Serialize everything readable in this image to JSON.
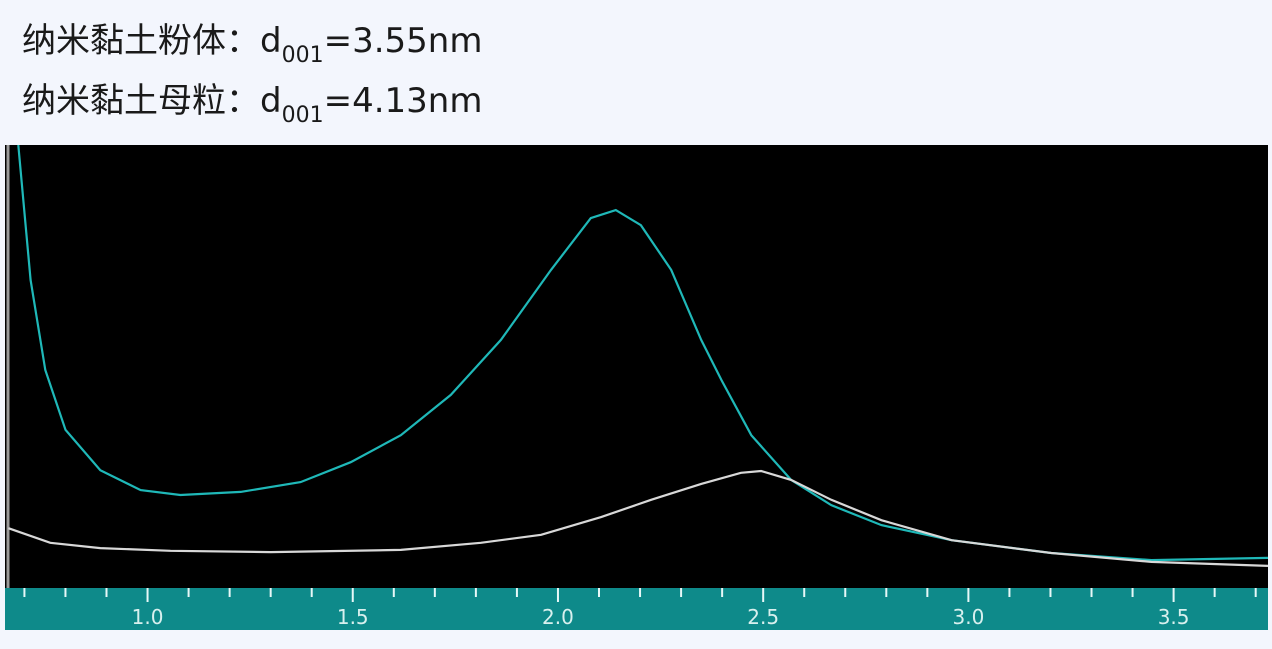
{
  "chart_data": {
    "type": "line",
    "annotations": [
      {
        "prefix": "纳米黏土粉体：d",
        "subscript": "001",
        "suffix": "=3.55nm"
      },
      {
        "prefix": "纳米黏土母粒：d",
        "subscript": "001",
        "suffix": "=4.13nm"
      }
    ],
    "xlim": [
      0.66,
      3.73
    ],
    "ylim": [
      0,
      100
    ],
    "xticks": [
      {
        "value": 1,
        "label": "1.0"
      },
      {
        "value": 1.5,
        "label": "1.5"
      },
      {
        "value": 2,
        "label": "2.0"
      },
      {
        "value": 2.5,
        "label": "2.5"
      },
      {
        "value": 3,
        "label": "3.0"
      },
      {
        "value": 3.5,
        "label": "3.5"
      }
    ],
    "minor_xticks": [
      0.7,
      0.8,
      0.9,
      1.1,
      1.2,
      1.3,
      1.4,
      1.6,
      1.7,
      1.8,
      1.9,
      2.1,
      2.2,
      2.3,
      2.4,
      2.6,
      2.7,
      2.8,
      2.9,
      3.1,
      3.2,
      3.3,
      3.4,
      3.6,
      3.7
    ],
    "series": [
      {
        "color": "#1fb8b8",
        "x": [
          0.685,
          0.715,
          0.751,
          0.8,
          0.885,
          0.983,
          1.08,
          1.227,
          1.373,
          1.495,
          1.617,
          1.739,
          1.861,
          1.983,
          2.08,
          2.141,
          2.202,
          2.276,
          2.349,
          2.398,
          2.471,
          2.568,
          2.666,
          2.788,
          2.959,
          3.202,
          3.446,
          3.73
        ],
        "values": [
          100,
          69.5,
          49.2,
          35.7,
          26.6,
          22.1,
          21.0,
          21.7,
          23.9,
          28.4,
          34.5,
          43.6,
          56.0,
          71.8,
          83.5,
          85.3,
          81.9,
          71.8,
          56.0,
          47.0,
          34.5,
          24.4,
          18.7,
          14.2,
          10.8,
          7.9,
          6.3,
          6.8
        ]
      },
      {
        "color": "#d8d8d8",
        "x": [
          0.661,
          0.763,
          0.885,
          1.056,
          1.3,
          1.617,
          1.812,
          1.959,
          2.105,
          2.227,
          2.349,
          2.446,
          2.495,
          2.568,
          2.666,
          2.788,
          2.959,
          3.202,
          3.446,
          3.73
        ],
        "values": [
          13.5,
          10.2,
          9.0,
          8.4,
          8.1,
          8.6,
          10.2,
          12.0,
          16.0,
          19.9,
          23.5,
          26.0,
          26.4,
          24.4,
          19.9,
          15.3,
          10.8,
          7.9,
          5.9,
          5.0
        ]
      }
    ]
  }
}
